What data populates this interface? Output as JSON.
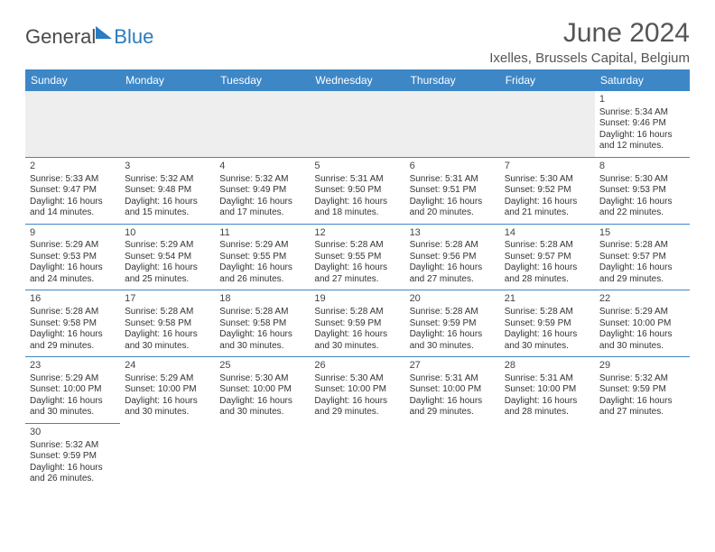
{
  "logo": {
    "part1": "General",
    "part2": "Blue"
  },
  "title": "June 2024",
  "location": "Ixelles, Brussels Capital, Belgium",
  "colors": {
    "header_bg": "#3d87c7",
    "header_text": "#ffffff",
    "border": "#3d87c7",
    "empty_bg": "#eeeeee",
    "logo_accent": "#2b7bbf"
  },
  "weekdays": [
    "Sunday",
    "Monday",
    "Tuesday",
    "Wednesday",
    "Thursday",
    "Friday",
    "Saturday"
  ],
  "weeks": [
    [
      null,
      null,
      null,
      null,
      null,
      null,
      {
        "day": "1",
        "sunrise": "Sunrise: 5:34 AM",
        "sunset": "Sunset: 9:46 PM",
        "daylight": "Daylight: 16 hours and 12 minutes."
      }
    ],
    [
      {
        "day": "2",
        "sunrise": "Sunrise: 5:33 AM",
        "sunset": "Sunset: 9:47 PM",
        "daylight": "Daylight: 16 hours and 14 minutes."
      },
      {
        "day": "3",
        "sunrise": "Sunrise: 5:32 AM",
        "sunset": "Sunset: 9:48 PM",
        "daylight": "Daylight: 16 hours and 15 minutes."
      },
      {
        "day": "4",
        "sunrise": "Sunrise: 5:32 AM",
        "sunset": "Sunset: 9:49 PM",
        "daylight": "Daylight: 16 hours and 17 minutes."
      },
      {
        "day": "5",
        "sunrise": "Sunrise: 5:31 AM",
        "sunset": "Sunset: 9:50 PM",
        "daylight": "Daylight: 16 hours and 18 minutes."
      },
      {
        "day": "6",
        "sunrise": "Sunrise: 5:31 AM",
        "sunset": "Sunset: 9:51 PM",
        "daylight": "Daylight: 16 hours and 20 minutes."
      },
      {
        "day": "7",
        "sunrise": "Sunrise: 5:30 AM",
        "sunset": "Sunset: 9:52 PM",
        "daylight": "Daylight: 16 hours and 21 minutes."
      },
      {
        "day": "8",
        "sunrise": "Sunrise: 5:30 AM",
        "sunset": "Sunset: 9:53 PM",
        "daylight": "Daylight: 16 hours and 22 minutes."
      }
    ],
    [
      {
        "day": "9",
        "sunrise": "Sunrise: 5:29 AM",
        "sunset": "Sunset: 9:53 PM",
        "daylight": "Daylight: 16 hours and 24 minutes."
      },
      {
        "day": "10",
        "sunrise": "Sunrise: 5:29 AM",
        "sunset": "Sunset: 9:54 PM",
        "daylight": "Daylight: 16 hours and 25 minutes."
      },
      {
        "day": "11",
        "sunrise": "Sunrise: 5:29 AM",
        "sunset": "Sunset: 9:55 PM",
        "daylight": "Daylight: 16 hours and 26 minutes."
      },
      {
        "day": "12",
        "sunrise": "Sunrise: 5:28 AM",
        "sunset": "Sunset: 9:55 PM",
        "daylight": "Daylight: 16 hours and 27 minutes."
      },
      {
        "day": "13",
        "sunrise": "Sunrise: 5:28 AM",
        "sunset": "Sunset: 9:56 PM",
        "daylight": "Daylight: 16 hours and 27 minutes."
      },
      {
        "day": "14",
        "sunrise": "Sunrise: 5:28 AM",
        "sunset": "Sunset: 9:57 PM",
        "daylight": "Daylight: 16 hours and 28 minutes."
      },
      {
        "day": "15",
        "sunrise": "Sunrise: 5:28 AM",
        "sunset": "Sunset: 9:57 PM",
        "daylight": "Daylight: 16 hours and 29 minutes."
      }
    ],
    [
      {
        "day": "16",
        "sunrise": "Sunrise: 5:28 AM",
        "sunset": "Sunset: 9:58 PM",
        "daylight": "Daylight: 16 hours and 29 minutes."
      },
      {
        "day": "17",
        "sunrise": "Sunrise: 5:28 AM",
        "sunset": "Sunset: 9:58 PM",
        "daylight": "Daylight: 16 hours and 30 minutes."
      },
      {
        "day": "18",
        "sunrise": "Sunrise: 5:28 AM",
        "sunset": "Sunset: 9:58 PM",
        "daylight": "Daylight: 16 hours and 30 minutes."
      },
      {
        "day": "19",
        "sunrise": "Sunrise: 5:28 AM",
        "sunset": "Sunset: 9:59 PM",
        "daylight": "Daylight: 16 hours and 30 minutes."
      },
      {
        "day": "20",
        "sunrise": "Sunrise: 5:28 AM",
        "sunset": "Sunset: 9:59 PM",
        "daylight": "Daylight: 16 hours and 30 minutes."
      },
      {
        "day": "21",
        "sunrise": "Sunrise: 5:28 AM",
        "sunset": "Sunset: 9:59 PM",
        "daylight": "Daylight: 16 hours and 30 minutes."
      },
      {
        "day": "22",
        "sunrise": "Sunrise: 5:29 AM",
        "sunset": "Sunset: 10:00 PM",
        "daylight": "Daylight: 16 hours and 30 minutes."
      }
    ],
    [
      {
        "day": "23",
        "sunrise": "Sunrise: 5:29 AM",
        "sunset": "Sunset: 10:00 PM",
        "daylight": "Daylight: 16 hours and 30 minutes."
      },
      {
        "day": "24",
        "sunrise": "Sunrise: 5:29 AM",
        "sunset": "Sunset: 10:00 PM",
        "daylight": "Daylight: 16 hours and 30 minutes."
      },
      {
        "day": "25",
        "sunrise": "Sunrise: 5:30 AM",
        "sunset": "Sunset: 10:00 PM",
        "daylight": "Daylight: 16 hours and 30 minutes."
      },
      {
        "day": "26",
        "sunrise": "Sunrise: 5:30 AM",
        "sunset": "Sunset: 10:00 PM",
        "daylight": "Daylight: 16 hours and 29 minutes."
      },
      {
        "day": "27",
        "sunrise": "Sunrise: 5:31 AM",
        "sunset": "Sunset: 10:00 PM",
        "daylight": "Daylight: 16 hours and 29 minutes."
      },
      {
        "day": "28",
        "sunrise": "Sunrise: 5:31 AM",
        "sunset": "Sunset: 10:00 PM",
        "daylight": "Daylight: 16 hours and 28 minutes."
      },
      {
        "day": "29",
        "sunrise": "Sunrise: 5:32 AM",
        "sunset": "Sunset: 9:59 PM",
        "daylight": "Daylight: 16 hours and 27 minutes."
      }
    ],
    [
      {
        "day": "30",
        "sunrise": "Sunrise: 5:32 AM",
        "sunset": "Sunset: 9:59 PM",
        "daylight": "Daylight: 16 hours and 26 minutes."
      },
      null,
      null,
      null,
      null,
      null,
      null
    ]
  ]
}
